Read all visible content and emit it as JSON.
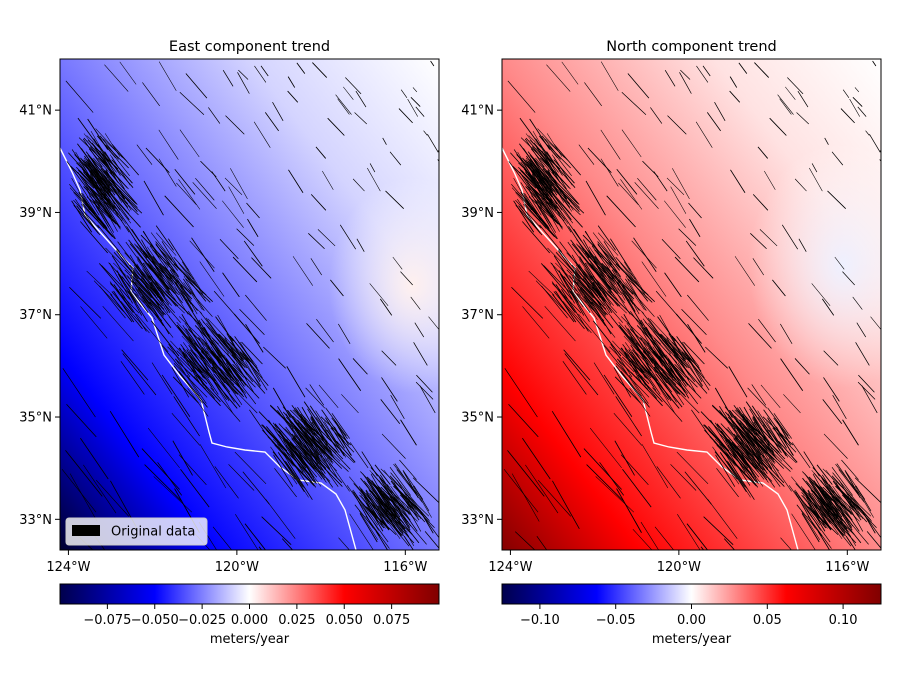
{
  "chart_data": [
    {
      "type": "heatmap",
      "title": "East component trend",
      "x_ticks": [
        {
          "value": -124,
          "label": "124°W"
        },
        {
          "value": -120,
          "label": "120°W"
        },
        {
          "value": -116,
          "label": "116°W"
        }
      ],
      "y_ticks": [
        {
          "value": 33,
          "label": "33°N"
        },
        {
          "value": 35,
          "label": "35°N"
        },
        {
          "value": 37,
          "label": "37°N"
        },
        {
          "value": 39,
          "label": "39°N"
        },
        {
          "value": 41,
          "label": "41°N"
        }
      ],
      "xlim": [
        -124.2,
        -115.2
      ],
      "ylim": [
        32.4,
        42.0
      ],
      "colormap": "seismic",
      "trend_field": {
        "min": -0.095,
        "max": 0.01,
        "gradient": "strongly negative in the southwest, near zero in the northeast"
      },
      "colorbar": {
        "label": "meters/year",
        "range": [
          -0.1,
          0.1
        ],
        "ticks": [
          {
            "value": -0.075,
            "label": "−0.075"
          },
          {
            "value": -0.05,
            "label": "−0.050"
          },
          {
            "value": -0.025,
            "label": "−0.025"
          },
          {
            "value": 0.0,
            "label": "0.000"
          },
          {
            "value": 0.025,
            "label": "0.025"
          },
          {
            "value": 0.05,
            "label": "0.050"
          },
          {
            "value": 0.075,
            "label": "0.075"
          }
        ]
      },
      "legend": {
        "placement": "lower-left",
        "entries": [
          {
            "label": "Original data"
          }
        ]
      },
      "grid": false
    },
    {
      "type": "heatmap",
      "title": "North component trend",
      "x_ticks": [
        {
          "value": -124,
          "label": "124°W"
        },
        {
          "value": -120,
          "label": "120°W"
        },
        {
          "value": -116,
          "label": "116°W"
        }
      ],
      "y_ticks": [
        {
          "value": 33,
          "label": "33°N"
        },
        {
          "value": 35,
          "label": "35°N"
        },
        {
          "value": 37,
          "label": "37°N"
        },
        {
          "value": 39,
          "label": "39°N"
        },
        {
          "value": 41,
          "label": "41°N"
        }
      ],
      "xlim": [
        -124.2,
        -115.2
      ],
      "ylim": [
        32.4,
        42.0
      ],
      "colormap": "seismic",
      "trend_field": {
        "min": -0.01,
        "max": 0.12,
        "gradient": "strongly positive in the southwest, near zero in the northeast"
      },
      "colorbar": {
        "label": "meters/year",
        "range": [
          -0.125,
          0.125
        ],
        "ticks": [
          {
            "value": -0.1,
            "label": "−0.10"
          },
          {
            "value": -0.05,
            "label": "−0.05"
          },
          {
            "value": 0.0,
            "label": "0.00"
          },
          {
            "value": 0.05,
            "label": "0.05"
          },
          {
            "value": 0.1,
            "label": "0.10"
          }
        ]
      },
      "grid": false
    }
  ]
}
